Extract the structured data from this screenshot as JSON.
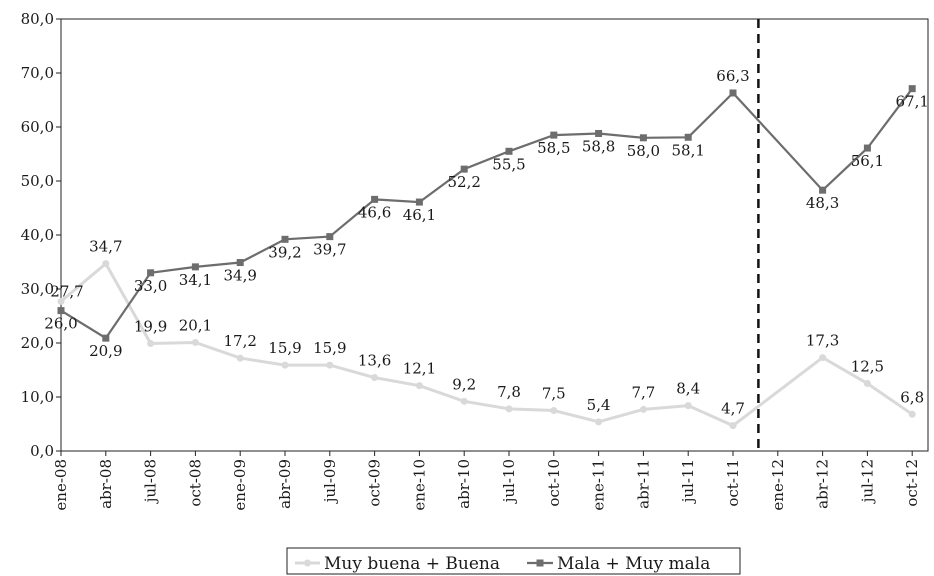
{
  "chart_data": {
    "type": "line",
    "categories": [
      "ene-08",
      "abr-08",
      "jul-08",
      "oct-08",
      "ene-09",
      "abr-09",
      "jul-09",
      "oct-09",
      "ene-10",
      "abr-10",
      "jul-10",
      "oct-10",
      "ene-11",
      "abr-11",
      "jul-11",
      "oct-11",
      "ene-12",
      "abr-12",
      "jul-12",
      "oct-12"
    ],
    "y_tick_labels": [
      "0,0",
      "10,0",
      "20,0",
      "30,0",
      "40,0",
      "50,0",
      "60,0",
      "70,0",
      "80,0"
    ],
    "ylim": [
      0,
      80
    ],
    "series": [
      {
        "name": "Muy buena + Buena",
        "color": "#d9d9d9",
        "marker": "circle",
        "values": [
          27.7,
          34.7,
          19.9,
          20.1,
          17.2,
          15.9,
          15.9,
          13.6,
          12.1,
          9.2,
          7.8,
          7.5,
          5.4,
          7.7,
          8.4,
          4.7,
          null,
          17.3,
          12.5,
          6.8
        ],
        "labels": [
          "27,7",
          "34,7",
          "19,9",
          "20,1",
          "17,2",
          "15,9",
          "15,9",
          "13,6",
          "12,1",
          "9,2",
          "7,8",
          "7,5",
          "5,4",
          "7,7",
          "8,4",
          "4,7",
          "",
          "17,3",
          "12,5",
          "6,8"
        ]
      },
      {
        "name": "Mala + Muy mala",
        "color": "#6d6d6d",
        "marker": "square",
        "values": [
          26.0,
          20.9,
          33.0,
          34.1,
          34.9,
          39.2,
          39.7,
          46.6,
          46.1,
          52.2,
          55.5,
          58.5,
          58.8,
          58.0,
          58.1,
          66.3,
          null,
          48.3,
          56.1,
          67.1
        ],
        "labels": [
          "26,0",
          "20,9",
          "33,0",
          "34,1",
          "34,9",
          "39,2",
          "39,7",
          "46,6",
          "46,1",
          "52,2",
          "55,5",
          "58,5",
          "58,8",
          "58,0",
          "58,1",
          "66,3",
          "",
          "48,3",
          "56,1",
          "67,1"
        ]
      }
    ],
    "reference_line": {
      "style": "dashed",
      "between": [
        "oct-11",
        "ene-12"
      ]
    },
    "legend": {
      "position": "bottom-center"
    },
    "grid": false
  }
}
